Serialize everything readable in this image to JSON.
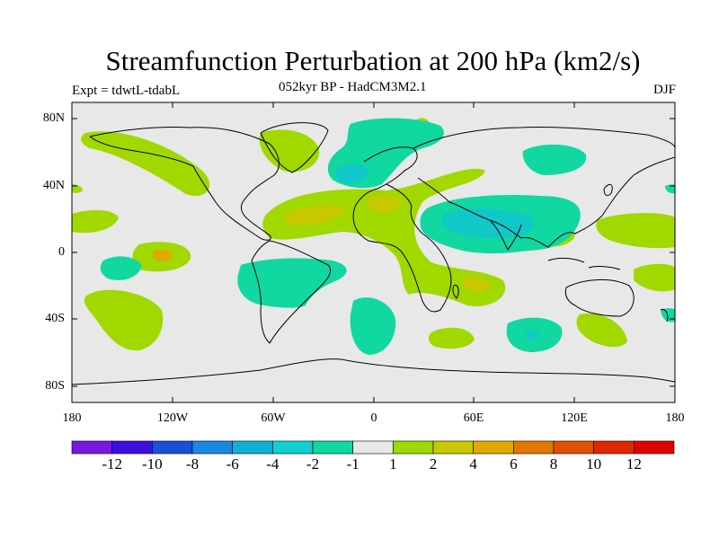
{
  "title": "Streamfunction Perturbation at 200 hPa (km2/s)",
  "subtitle": "052kyr BP - HadCM3M2.1",
  "experiment": "Expt = tdwtL-tdabL",
  "season": "DJF",
  "y_axis_labels": [
    "80N",
    "40N",
    "0",
    "40S",
    "80S"
  ],
  "x_axis_labels": [
    "180",
    "120W",
    "60W",
    "0",
    "60E",
    "120E",
    "180"
  ],
  "colorbar": {
    "labels": [
      "-12",
      "-10",
      "-8",
      "-6",
      "-4",
      "-2",
      "-1",
      "1",
      "2",
      "4",
      "6",
      "8",
      "10",
      "12"
    ],
    "colors": [
      "#7a18e0",
      "#3a10e0",
      "#1a50d8",
      "#1888e0",
      "#10b0d8",
      "#10d0d0",
      "#10d8a0",
      "#e8e8e8",
      "#a0d800",
      "#c8c800",
      "#e0a800",
      "#e07800",
      "#e05000",
      "#e02800",
      "#e00000"
    ]
  },
  "palette": {
    "background_field": "#e8e8e8",
    "neg_1_2": "#10d8a0",
    "neg_2_4": "#10c8c8",
    "pos_1_2": "#a0d800",
    "pos_2_4": "#c8c800",
    "pos_4_6": "#e0a800"
  }
}
